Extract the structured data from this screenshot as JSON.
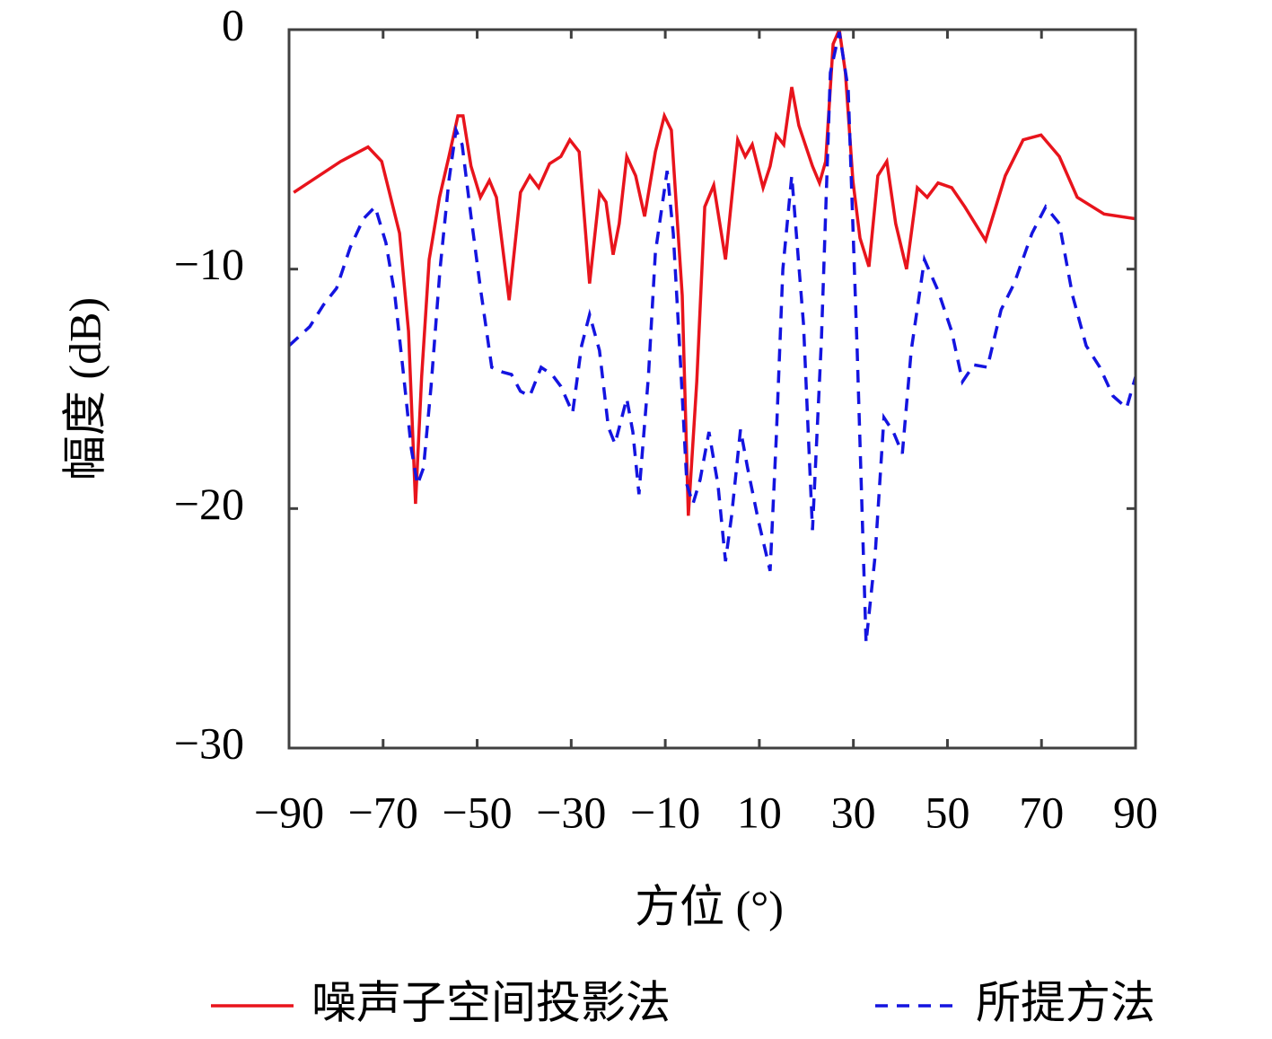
{
  "chart_data": {
    "type": "line",
    "xlabel": "方位 (°)",
    "ylabel": "幅度 (dB)",
    "xlim": [
      -90,
      90
    ],
    "xticks": [
      {
        "value": -90,
        "label": "−90"
      },
      {
        "value": -70,
        "label": "−70"
      },
      {
        "value": -50,
        "label": "−50"
      },
      {
        "value": -30,
        "label": "−30"
      },
      {
        "value": -10,
        "label": "−10"
      },
      10,
      30,
      50,
      70,
      90
    ],
    "ylim": [
      -30,
      0
    ],
    "yticks": [
      0,
      {
        "value": -10,
        "label": "−10"
      },
      {
        "value": -20,
        "label": "−20"
      },
      {
        "value": -30,
        "label": "−30"
      }
    ],
    "series": [
      {
        "name": "噪声子空间投影法",
        "color": "#e8141c",
        "dash": "solid",
        "x": [
          -89,
          -79,
          -73.2,
          -70.3,
          -66.5,
          -64.6,
          -63.1,
          -61.8,
          -60.2,
          -58,
          -56,
          -54.1,
          -53,
          -51.3,
          -49.3,
          -47.4,
          -45.9,
          -43.2,
          -40.8,
          -38.8,
          -36.9,
          -34.6,
          -32.2,
          -30.3,
          -28.3,
          -26.1,
          -24,
          -22.6,
          -21.1,
          -19.8,
          -18.2,
          -16.3,
          -14.4,
          -12.1,
          -10.2,
          -8.7,
          -6.4,
          -5.1,
          -3.3,
          -1.6,
          0.3,
          2.8,
          5.4,
          7,
          8.5,
          10.8,
          12.3,
          13.6,
          15.2,
          16.9,
          18.4,
          21.3,
          22.8,
          24.1,
          25.7,
          27,
          28.3,
          29.9,
          31.4,
          33.3,
          35.2,
          37.1,
          39,
          41.3,
          43.6,
          45.7,
          48,
          50.9,
          53.7,
          58.1,
          62.3,
          66.1,
          69.9,
          73.8,
          77.6,
          83.3,
          90
        ],
        "values": [
          -6.8,
          -5.5,
          -4.9,
          -5.5,
          -8.5,
          -12.6,
          -19.8,
          -14.5,
          -9.6,
          -7,
          -5.3,
          -3.6,
          -3.6,
          -5.7,
          -7,
          -6.3,
          -7,
          -11.3,
          -6.8,
          -6.1,
          -6.6,
          -5.6,
          -5.3,
          -4.6,
          -5.1,
          -10.6,
          -6.8,
          -7.2,
          -9.4,
          -8.1,
          -5.3,
          -6.1,
          -7.8,
          -5.1,
          -3.6,
          -4.2,
          -11.1,
          -20.3,
          -14.7,
          -7.4,
          -6.5,
          -9.6,
          -4.6,
          -5.3,
          -4.8,
          -6.6,
          -5.7,
          -4.4,
          -4.8,
          -2.4,
          -4,
          -5.7,
          -6.4,
          -5.5,
          -0.6,
          0,
          -1.8,
          -6.3,
          -8.7,
          -9.9,
          -6.1,
          -5.5,
          -8.1,
          -10,
          -6.6,
          -7,
          -6.4,
          -6.6,
          -7.4,
          -8.8,
          -6.1,
          -4.6,
          -4.4,
          -5.3,
          -7,
          -7.7,
          -7.9
        ]
      },
      {
        "name": "所提方法",
        "color": "#1414e0",
        "dash": "dashed",
        "x": [
          -90,
          -85.6,
          -82.7,
          -79.9,
          -77,
          -74.2,
          -71.7,
          -69.4,
          -67.5,
          -65.6,
          -64,
          -62.7,
          -61.4,
          -59.8,
          -57.9,
          -56,
          -54.5,
          -53.2,
          -51.3,
          -49.3,
          -46.9,
          -44.6,
          -42.7,
          -40.8,
          -38.8,
          -36.4,
          -34.1,
          -32.2,
          -29.7,
          -27.8,
          -26.1,
          -24,
          -22.1,
          -20.7,
          -18.2,
          -16.9,
          -15.6,
          -13.6,
          -12.1,
          -9.6,
          -8.3,
          -6.8,
          -5.4,
          -4.1,
          -2.6,
          -0.7,
          1.2,
          2.8,
          4.1,
          6,
          7.5,
          9.8,
          12.3,
          13.6,
          15,
          16.9,
          19.4,
          21.3,
          23.2,
          25.1,
          27,
          28.9,
          30.8,
          32.7,
          34.6,
          36.5,
          38.5,
          40.4,
          42.3,
          45.1,
          48,
          50.9,
          53.2,
          55.6,
          58.5,
          61.4,
          64.2,
          68,
          70.9,
          73.8,
          76.6,
          79.5,
          82.4,
          85.2,
          88.1,
          90
        ],
        "values": [
          -13.2,
          -12.4,
          -11.5,
          -10.8,
          -9.1,
          -7.9,
          -7.4,
          -8.9,
          -11.1,
          -14.5,
          -17.5,
          -19,
          -18.3,
          -14.9,
          -10,
          -6.3,
          -4.2,
          -4.8,
          -7.8,
          -10.8,
          -14.1,
          -14.3,
          -14.4,
          -15.1,
          -15.3,
          -14.1,
          -14.4,
          -14.9,
          -16,
          -13.2,
          -11.9,
          -13.4,
          -16.6,
          -17.3,
          -15.4,
          -16.8,
          -19.4,
          -14.5,
          -9.3,
          -5.9,
          -8.5,
          -13.8,
          -19,
          -19.8,
          -18.8,
          -16.8,
          -19,
          -22.2,
          -20.3,
          -16.7,
          -18.3,
          -20.5,
          -22.6,
          -17.1,
          -10,
          -6.1,
          -12.3,
          -20.9,
          -13,
          -1.8,
          -0.1,
          -2.5,
          -13.4,
          -25.6,
          -22,
          -16.2,
          -16.8,
          -17.7,
          -13.4,
          -9.6,
          -10.9,
          -12.6,
          -14.7,
          -14,
          -14.1,
          -11.7,
          -10.6,
          -8.5,
          -7.4,
          -8.1,
          -11.1,
          -13.2,
          -14.1,
          -15.3,
          -15.8,
          -14.5
        ]
      }
    ]
  }
}
